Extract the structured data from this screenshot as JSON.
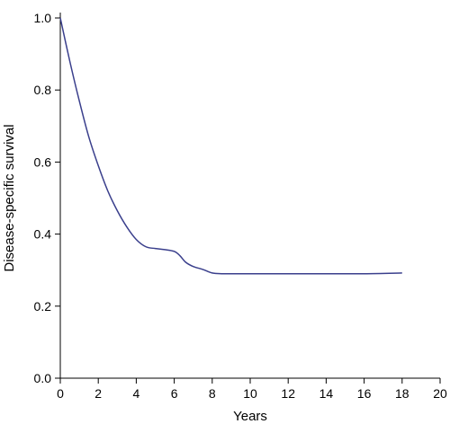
{
  "chart_data": {
    "type": "line",
    "xlabel": "Years",
    "ylabel": "Disease-specific survival",
    "xlim": [
      0,
      20
    ],
    "ylim": [
      0,
      1.0
    ],
    "x_ticks": [
      0,
      2,
      4,
      6,
      8,
      10,
      12,
      14,
      16,
      18,
      20
    ],
    "x_tick_labels": [
      "0",
      "2",
      "4",
      "6",
      "8",
      "10",
      "12",
      "14",
      "16",
      "18",
      "20"
    ],
    "y_ticks": [
      0,
      0.2,
      0.4,
      0.6,
      0.8,
      1.0
    ],
    "y_tick_labels": [
      "0.0",
      "0.2",
      "0.4",
      "0.6",
      "0.8",
      "1.0"
    ],
    "grid": false,
    "series": [
      {
        "color": "#3a3f8c",
        "x": [
          0,
          0.5,
          1,
          1.5,
          2,
          2.5,
          3,
          3.5,
          4,
          4.5,
          5,
          5.5,
          6,
          6.3,
          6.6,
          7,
          7.5,
          8,
          8.5,
          9,
          10,
          12,
          14,
          16,
          18
        ],
        "y": [
          1.0,
          0.88,
          0.77,
          0.67,
          0.59,
          0.52,
          0.465,
          0.42,
          0.385,
          0.365,
          0.36,
          0.357,
          0.352,
          0.34,
          0.322,
          0.31,
          0.302,
          0.292,
          0.29,
          0.29,
          0.29,
          0.29,
          0.29,
          0.29,
          0.292
        ]
      }
    ]
  }
}
